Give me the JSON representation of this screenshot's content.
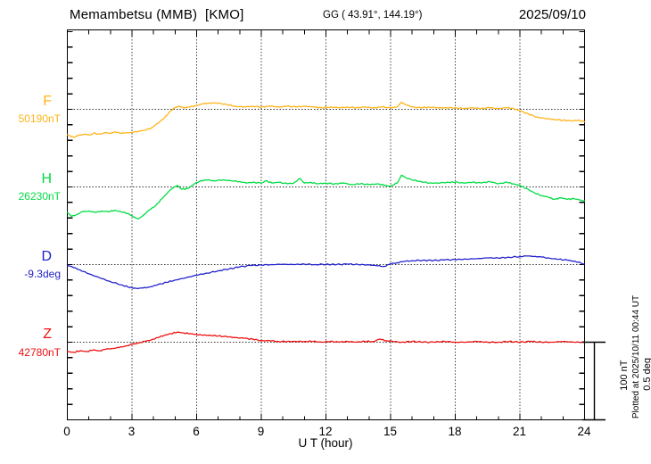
{
  "header": {
    "title": "Memambetsu (MMB)  [KMO]",
    "coords": "GG ( 43.91°, 144.19°)",
    "date": "2025/09/10"
  },
  "axes": {
    "xlabel": "U T (hour)",
    "xticks": [
      "0",
      "3",
      "6",
      "9",
      "12",
      "15",
      "18",
      "21",
      "24"
    ]
  },
  "scale_bar": {
    "label_nt": "100 nT",
    "label_deg": "0.5 deg"
  },
  "plotted_at": "Plotted at 2025/10/11 00:44 UT",
  "channels": [
    {
      "letter": "F",
      "value_label": "50190nT",
      "color": "#FFB418"
    },
    {
      "letter": "H",
      "value_label": "26230nT",
      "color": "#00DD44"
    },
    {
      "letter": "D",
      "value_label": "-9.3deg",
      "color": "#2222CC"
    },
    {
      "letter": "Z",
      "value_label": "42780nT",
      "color": "#EE1111"
    }
  ],
  "chart_data": {
    "type": "line",
    "title": "Memambetsu (MMB) [KMO] magnetogram 2025/09/10",
    "xlabel": "U T (hour)",
    "x_range": [
      0,
      24
    ],
    "x_unit": "hour",
    "grid": "dotted, vertical every 3 h, horizontal at each channel baseline",
    "amplitude_scale": {
      "nT_per_division": 100,
      "deg_per_division": 0.5
    },
    "series": [
      {
        "name": "F",
        "unit": "nT",
        "base_value": 50190,
        "color": "#FFB418",
        "points": [
          [
            0,
            -33
          ],
          [
            0.3,
            -36
          ],
          [
            0.5,
            -34
          ],
          [
            0.8,
            -32
          ],
          [
            1.0,
            -33
          ],
          [
            1.2,
            -31
          ],
          [
            1.5,
            -32
          ],
          [
            1.8,
            -30
          ],
          [
            2.0,
            -31
          ],
          [
            2.2,
            -29
          ],
          [
            2.5,
            -31
          ],
          [
            2.8,
            -30
          ],
          [
            3.0,
            -30
          ],
          [
            3.3,
            -28
          ],
          [
            3.6,
            -27
          ],
          [
            3.9,
            -24
          ],
          [
            4.2,
            -18
          ],
          [
            4.5,
            -11
          ],
          [
            4.8,
            -2
          ],
          [
            5.0,
            2
          ],
          [
            5.2,
            4
          ],
          [
            5.4,
            2
          ],
          [
            5.7,
            3
          ],
          [
            6.0,
            5
          ],
          [
            6.3,
            7
          ],
          [
            6.6,
            8
          ],
          [
            7.0,
            8
          ],
          [
            7.4,
            6
          ],
          [
            7.8,
            4
          ],
          [
            8.2,
            3
          ],
          [
            8.6,
            4
          ],
          [
            9.0,
            3
          ],
          [
            9.4,
            4
          ],
          [
            9.8,
            3
          ],
          [
            10.2,
            4
          ],
          [
            10.6,
            3
          ],
          [
            11.0,
            4
          ],
          [
            11.4,
            3
          ],
          [
            11.8,
            2
          ],
          [
            12.2,
            3
          ],
          [
            12.6,
            2
          ],
          [
            13.0,
            3
          ],
          [
            13.4,
            2
          ],
          [
            13.8,
            3
          ],
          [
            14.2,
            2
          ],
          [
            14.6,
            3
          ],
          [
            15.0,
            2
          ],
          [
            15.3,
            3
          ],
          [
            15.5,
            9
          ],
          [
            15.7,
            6
          ],
          [
            16.0,
            3
          ],
          [
            16.4,
            2
          ],
          [
            16.8,
            3
          ],
          [
            17.2,
            2
          ],
          [
            17.6,
            2
          ],
          [
            18.0,
            2
          ],
          [
            18.4,
            1
          ],
          [
            18.8,
            2
          ],
          [
            19.2,
            1
          ],
          [
            19.6,
            2
          ],
          [
            20.0,
            1
          ],
          [
            20.4,
            2
          ],
          [
            20.7,
            1
          ],
          [
            21.0,
            -2
          ],
          [
            21.4,
            -6
          ],
          [
            21.8,
            -10
          ],
          [
            22.2,
            -12
          ],
          [
            22.6,
            -13
          ],
          [
            23.0,
            -14
          ],
          [
            23.4,
            -15
          ],
          [
            23.7,
            -14
          ],
          [
            24,
            -16
          ]
        ]
      },
      {
        "name": "H",
        "unit": "nT",
        "base_value": 26230,
        "color": "#00DD44",
        "points": [
          [
            0,
            -33
          ],
          [
            0.2,
            -38
          ],
          [
            0.4,
            -36
          ],
          [
            0.7,
            -32
          ],
          [
            1.0,
            -31
          ],
          [
            1.3,
            -33
          ],
          [
            1.6,
            -31
          ],
          [
            1.9,
            -32
          ],
          [
            2.2,
            -30
          ],
          [
            2.5,
            -32
          ],
          [
            2.8,
            -34
          ],
          [
            3.1,
            -39
          ],
          [
            3.3,
            -41
          ],
          [
            3.5,
            -37
          ],
          [
            3.8,
            -30
          ],
          [
            4.1,
            -24
          ],
          [
            4.4,
            -15
          ],
          [
            4.7,
            -6
          ],
          [
            4.9,
            -1
          ],
          [
            5.1,
            2
          ],
          [
            5.3,
            -3
          ],
          [
            5.6,
            -2
          ],
          [
            5.9,
            4
          ],
          [
            6.2,
            8
          ],
          [
            6.5,
            9
          ],
          [
            6.8,
            8
          ],
          [
            7.2,
            9
          ],
          [
            7.6,
            8
          ],
          [
            8.0,
            7
          ],
          [
            8.3,
            5
          ],
          [
            8.6,
            6
          ],
          [
            9.0,
            5
          ],
          [
            9.2,
            8
          ],
          [
            9.5,
            5
          ],
          [
            9.8,
            6
          ],
          [
            10.2,
            4
          ],
          [
            10.5,
            5
          ],
          [
            10.8,
            11
          ],
          [
            11.0,
            5
          ],
          [
            11.3,
            6
          ],
          [
            11.6,
            4
          ],
          [
            12.0,
            5
          ],
          [
            12.4,
            4
          ],
          [
            12.8,
            5
          ],
          [
            13.2,
            3
          ],
          [
            13.6,
            4
          ],
          [
            14.0,
            3
          ],
          [
            14.4,
            4
          ],
          [
            14.7,
            2
          ],
          [
            15.0,
            1
          ],
          [
            15.3,
            5
          ],
          [
            15.5,
            15
          ],
          [
            15.7,
            12
          ],
          [
            16.0,
            9
          ],
          [
            16.4,
            7
          ],
          [
            16.8,
            5
          ],
          [
            17.2,
            5
          ],
          [
            17.6,
            6
          ],
          [
            18.0,
            6
          ],
          [
            18.4,
            5
          ],
          [
            18.8,
            6
          ],
          [
            19.2,
            5
          ],
          [
            19.6,
            7
          ],
          [
            20.0,
            4
          ],
          [
            20.4,
            6
          ],
          [
            20.7,
            4
          ],
          [
            21.0,
            2
          ],
          [
            21.3,
            -2
          ],
          [
            21.7,
            -8
          ],
          [
            22.0,
            -11
          ],
          [
            22.3,
            -13
          ],
          [
            22.6,
            -16
          ],
          [
            22.9,
            -14
          ],
          [
            23.2,
            -16
          ],
          [
            23.5,
            -15
          ],
          [
            23.8,
            -17
          ],
          [
            24,
            -18
          ]
        ]
      },
      {
        "name": "D",
        "unit": "deg",
        "base_value": -9.3,
        "color": "#2222CC",
        "points": [
          [
            0,
            -0.003
          ],
          [
            0.3,
            -0.02
          ],
          [
            0.6,
            -0.035
          ],
          [
            1.0,
            -0.06
          ],
          [
            1.5,
            -0.085
          ],
          [
            2.0,
            -0.11
          ],
          [
            2.5,
            -0.13
          ],
          [
            2.9,
            -0.148
          ],
          [
            3.2,
            -0.153
          ],
          [
            3.5,
            -0.152
          ],
          [
            3.8,
            -0.145
          ],
          [
            4.2,
            -0.13
          ],
          [
            4.6,
            -0.115
          ],
          [
            5.0,
            -0.1
          ],
          [
            5.5,
            -0.085
          ],
          [
            6.0,
            -0.068
          ],
          [
            6.5,
            -0.055
          ],
          [
            7.0,
            -0.04
          ],
          [
            7.5,
            -0.028
          ],
          [
            8.0,
            -0.015
          ],
          [
            8.5,
            -0.006
          ],
          [
            9.0,
            -0.003
          ],
          [
            9.5,
            0
          ],
          [
            10.0,
            0.002
          ],
          [
            10.5,
            0
          ],
          [
            11.0,
            0.003
          ],
          [
            11.5,
            0
          ],
          [
            12.0,
            0.002
          ],
          [
            12.5,
            0
          ],
          [
            13.0,
            0.003
          ],
          [
            13.5,
            0
          ],
          [
            14.0,
            -0.002
          ],
          [
            14.4,
            -0.008
          ],
          [
            14.7,
            -0.012
          ],
          [
            15.0,
            0.005
          ],
          [
            15.3,
            0.012
          ],
          [
            15.6,
            0.02
          ],
          [
            16.0,
            0.025
          ],
          [
            16.5,
            0.028
          ],
          [
            17.0,
            0.026
          ],
          [
            17.5,
            0.03
          ],
          [
            18.0,
            0.032
          ],
          [
            18.5,
            0.035
          ],
          [
            19.0,
            0.038
          ],
          [
            19.5,
            0.043
          ],
          [
            20.0,
            0.042
          ],
          [
            20.5,
            0.047
          ],
          [
            21.0,
            0.052
          ],
          [
            21.3,
            0.055
          ],
          [
            21.7,
            0.053
          ],
          [
            22.0,
            0.048
          ],
          [
            22.4,
            0.04
          ],
          [
            22.8,
            0.034
          ],
          [
            23.2,
            0.028
          ],
          [
            23.5,
            0.022
          ],
          [
            23.8,
            0.012
          ],
          [
            24,
            0.003
          ]
        ]
      },
      {
        "name": "Z",
        "unit": "nT",
        "base_value": 42780,
        "color": "#EE1111",
        "points": [
          [
            0,
            -12
          ],
          [
            0.3,
            -13
          ],
          [
            0.6,
            -11
          ],
          [
            0.9,
            -12
          ],
          [
            1.2,
            -10
          ],
          [
            1.5,
            -11
          ],
          [
            1.8,
            -9
          ],
          [
            2.1,
            -8
          ],
          [
            2.4,
            -7
          ],
          [
            2.7,
            -5
          ],
          [
            3.0,
            -3
          ],
          [
            3.3,
            -1
          ],
          [
            3.6,
            1
          ],
          [
            3.9,
            3
          ],
          [
            4.2,
            6
          ],
          [
            4.5,
            9
          ],
          [
            4.8,
            11
          ],
          [
            5.1,
            13
          ],
          [
            5.4,
            12
          ],
          [
            5.7,
            11
          ],
          [
            6.0,
            10
          ],
          [
            6.3,
            9
          ],
          [
            6.6,
            9
          ],
          [
            7.0,
            8
          ],
          [
            7.4,
            7
          ],
          [
            7.8,
            6
          ],
          [
            8.2,
            5
          ],
          [
            8.6,
            4
          ],
          [
            9.0,
            2
          ],
          [
            9.4,
            2
          ],
          [
            9.8,
            1
          ],
          [
            10.2,
            1
          ],
          [
            10.6,
            1
          ],
          [
            11.0,
            1
          ],
          [
            11.4,
            1
          ],
          [
            11.8,
            0
          ],
          [
            12.2,
            1
          ],
          [
            12.6,
            0
          ],
          [
            13.0,
            1
          ],
          [
            13.4,
            0
          ],
          [
            13.8,
            1
          ],
          [
            14.2,
            1
          ],
          [
            14.5,
            4
          ],
          [
            14.8,
            2
          ],
          [
            15.1,
            1
          ],
          [
            15.5,
            0
          ],
          [
            16.0,
            1
          ],
          [
            16.5,
            0
          ],
          [
            17.0,
            0
          ],
          [
            17.5,
            1
          ],
          [
            18.0,
            0
          ],
          [
            18.5,
            0
          ],
          [
            19.0,
            1
          ],
          [
            19.5,
            0
          ],
          [
            20.0,
            0
          ],
          [
            20.5,
            1
          ],
          [
            21.0,
            0
          ],
          [
            21.5,
            1
          ],
          [
            22.0,
            0
          ],
          [
            22.5,
            0
          ],
          [
            23.0,
            1
          ],
          [
            23.5,
            0
          ],
          [
            24,
            0
          ]
        ]
      }
    ]
  }
}
